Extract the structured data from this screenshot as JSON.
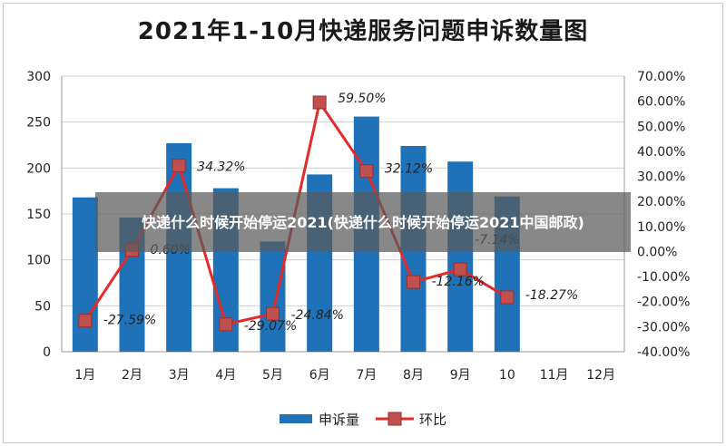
{
  "overlay": {
    "text": "快递什么时候开始停运2021(快递什么时候开始停运2021中国邮政)"
  },
  "chart_data": {
    "type": "bar",
    "title": "2021年1-10月快递服务问题申诉数量图",
    "categories": [
      "1月",
      "2月",
      "3月",
      "4月",
      "5月",
      "6月",
      "7月",
      "8月",
      "9月",
      "10",
      "11月",
      "12月"
    ],
    "series": [
      {
        "name": "申诉量",
        "type": "bar",
        "axis": "left",
        "color": "#1f72b8",
        "values": [
          168,
          146,
          227,
          178,
          120,
          193,
          256,
          224,
          207,
          169,
          null,
          null
        ]
      },
      {
        "name": "环比",
        "type": "line",
        "axis": "right",
        "color": "#e52a2a",
        "values": [
          -27.59,
          0.6,
          34.32,
          -29.07,
          -24.84,
          59.5,
          32.12,
          -12.16,
          -7.14,
          -18.27,
          null,
          null
        ],
        "labels": [
          "-27.59%",
          "0.60%",
          "34.32%",
          "-29.07%",
          "-24.84%",
          "59.50%",
          "32.12%",
          "-12.16%",
          "-7.14%",
          "-18.27%",
          "",
          ""
        ]
      }
    ],
    "y_left": {
      "ylim": [
        0,
        300
      ],
      "ticks": [
        "0",
        "50",
        "100",
        "150",
        "200",
        "250",
        "300"
      ]
    },
    "y_right": {
      "ylim": [
        -40,
        70
      ],
      "ticks": [
        "-40.00%",
        "-30.00%",
        "-20.00%",
        "-10.00%",
        "0.00%",
        "10.00%",
        "20.00%",
        "30.00%",
        "40.00%",
        "50.00%",
        "60.00%",
        "70.00%"
      ]
    },
    "grid": true,
    "legend": "bottom-center"
  }
}
